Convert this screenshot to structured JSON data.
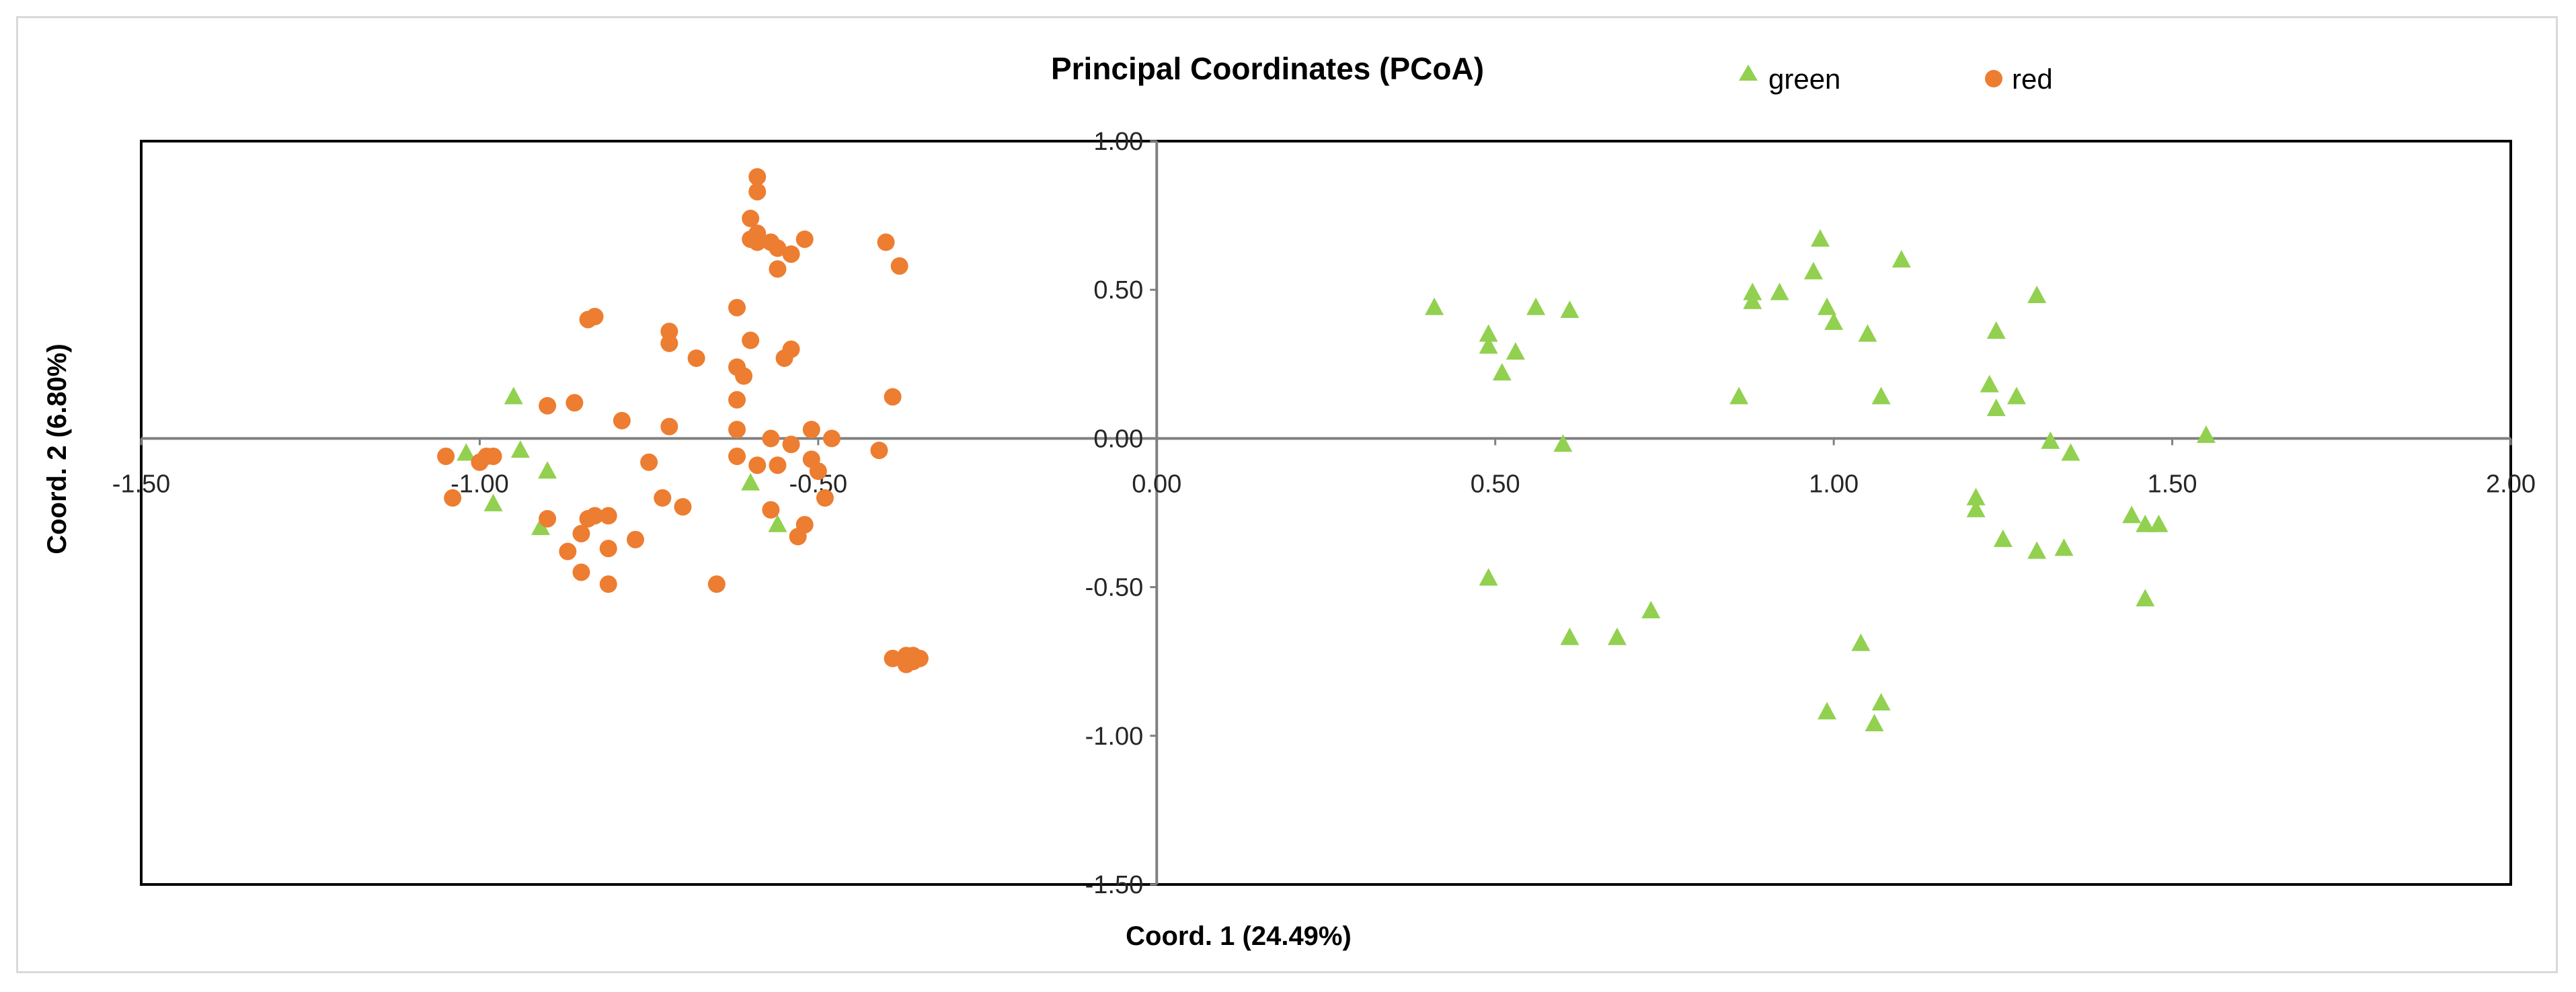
{
  "chart_data": {
    "type": "scatter",
    "title": "Principal Coordinates (PCoA)",
    "xlabel": "Coord. 1 (24.49%)",
    "ylabel": "Coord. 2 (6.80%)",
    "xlim": [
      -1.5,
      2.0
    ],
    "ylim": [
      -1.5,
      1.0
    ],
    "x_ticks": [
      "-1.50",
      "-1.00",
      "-0.50",
      "0.00",
      "0.50",
      "1.00",
      "1.50",
      "2.00"
    ],
    "y_ticks": [
      "1.00",
      "0.50",
      "0.00",
      "-0.50",
      "-1.00",
      "-1.50"
    ],
    "x_tick_values": [
      -1.5,
      -1.0,
      -0.5,
      0.0,
      0.5,
      1.0,
      1.5,
      2.0
    ],
    "y_tick_values": [
      1.0,
      0.5,
      0.0,
      -0.5,
      -1.0,
      -1.5
    ],
    "legend_position": "top-right",
    "series": [
      {
        "name": "green",
        "marker": "triangle",
        "color": "#92D050",
        "points": [
          [
            -1.02,
            -0.05
          ],
          [
            -0.98,
            -0.22
          ],
          [
            -0.95,
            0.14
          ],
          [
            -0.94,
            -0.04
          ],
          [
            -0.9,
            -0.11
          ],
          [
            -0.91,
            -0.3
          ],
          [
            -0.6,
            -0.15
          ],
          [
            -0.56,
            -0.29
          ],
          [
            0.41,
            0.44
          ],
          [
            0.49,
            0.35
          ],
          [
            0.49,
            0.31
          ],
          [
            0.51,
            0.22
          ],
          [
            0.53,
            0.29
          ],
          [
            0.56,
            0.44
          ],
          [
            0.61,
            0.43
          ],
          [
            0.6,
            -0.02
          ],
          [
            0.49,
            -0.47
          ],
          [
            0.61,
            -0.67
          ],
          [
            0.68,
            -0.67
          ],
          [
            0.73,
            -0.58
          ],
          [
            0.86,
            0.14
          ],
          [
            0.88,
            0.49
          ],
          [
            0.88,
            0.46
          ],
          [
            0.92,
            0.49
          ],
          [
            0.97,
            0.56
          ],
          [
            0.98,
            0.67
          ],
          [
            0.99,
            0.44
          ],
          [
            1.0,
            0.39
          ],
          [
            1.05,
            0.35
          ],
          [
            1.07,
            0.14
          ],
          [
            1.1,
            0.6
          ],
          [
            1.21,
            -0.24
          ],
          [
            1.21,
            -0.2
          ],
          [
            1.23,
            0.18
          ],
          [
            1.24,
            0.1
          ],
          [
            1.24,
            0.36
          ],
          [
            1.25,
            -0.34
          ],
          [
            1.27,
            0.14
          ],
          [
            1.3,
            0.48
          ],
          [
            1.3,
            -0.38
          ],
          [
            1.32,
            -0.01
          ],
          [
            1.34,
            -0.37
          ],
          [
            1.35,
            -0.05
          ],
          [
            1.44,
            -0.26
          ],
          [
            1.46,
            -0.29
          ],
          [
            1.46,
            -0.54
          ],
          [
            1.48,
            -0.29
          ],
          [
            1.55,
            0.01
          ],
          [
            0.99,
            -0.92
          ],
          [
            1.04,
            -0.69
          ],
          [
            1.06,
            -0.96
          ],
          [
            1.07,
            -0.89
          ]
        ]
      },
      {
        "name": "red",
        "marker": "circle",
        "color": "#ED7D31",
        "points": [
          [
            -1.05,
            -0.06
          ],
          [
            -1.04,
            -0.2
          ],
          [
            -1.0,
            -0.08
          ],
          [
            -0.99,
            -0.06
          ],
          [
            -0.98,
            -0.06
          ],
          [
            -0.9,
            0.11
          ],
          [
            -0.9,
            -0.27
          ],
          [
            -0.87,
            -0.38
          ],
          [
            -0.86,
            0.12
          ],
          [
            -0.85,
            -0.45
          ],
          [
            -0.85,
            -0.32
          ],
          [
            -0.84,
            0.4
          ],
          [
            -0.84,
            -0.27
          ],
          [
            -0.83,
            0.41
          ],
          [
            -0.83,
            -0.26
          ],
          [
            -0.81,
            -0.26
          ],
          [
            -0.81,
            -0.37
          ],
          [
            -0.81,
            -0.49
          ],
          [
            -0.79,
            0.06
          ],
          [
            -0.77,
            -0.34
          ],
          [
            -0.75,
            -0.08
          ],
          [
            -0.73,
            -0.2
          ],
          [
            -0.72,
            0.36
          ],
          [
            -0.72,
            0.32
          ],
          [
            -0.72,
            0.04
          ],
          [
            -0.7,
            -0.23
          ],
          [
            -0.68,
            0.27
          ],
          [
            -0.65,
            -0.49
          ],
          [
            -0.62,
            0.44
          ],
          [
            -0.62,
            0.24
          ],
          [
            -0.62,
            0.13
          ],
          [
            -0.62,
            0.03
          ],
          [
            -0.62,
            -0.06
          ],
          [
            -0.61,
            0.21
          ],
          [
            -0.6,
            0.33
          ],
          [
            -0.6,
            0.74
          ],
          [
            -0.6,
            0.67
          ],
          [
            -0.59,
            0.88
          ],
          [
            -0.59,
            0.83
          ],
          [
            -0.59,
            0.69
          ],
          [
            -0.59,
            0.66
          ],
          [
            -0.59,
            -0.09
          ],
          [
            -0.57,
            0.66
          ],
          [
            -0.57,
            0.0
          ],
          [
            -0.57,
            -0.24
          ],
          [
            -0.56,
            0.64
          ],
          [
            -0.56,
            0.57
          ],
          [
            -0.56,
            -0.09
          ],
          [
            -0.55,
            0.27
          ],
          [
            -0.54,
            0.3
          ],
          [
            -0.54,
            0.62
          ],
          [
            -0.54,
            -0.02
          ],
          [
            -0.53,
            -0.33
          ],
          [
            -0.52,
            0.67
          ],
          [
            -0.52,
            -0.29
          ],
          [
            -0.51,
            0.03
          ],
          [
            -0.51,
            -0.07
          ],
          [
            -0.5,
            -0.11
          ],
          [
            -0.49,
            -0.2
          ],
          [
            -0.48,
            0.0
          ],
          [
            -0.41,
            -0.04
          ],
          [
            -0.4,
            0.66
          ],
          [
            -0.39,
            0.14
          ],
          [
            -0.38,
            0.58
          ],
          [
            -0.39,
            -0.74
          ],
          [
            -0.37,
            -0.73
          ],
          [
            -0.37,
            -0.76
          ],
          [
            -0.36,
            -0.75
          ],
          [
            -0.36,
            -0.73
          ],
          [
            -0.35,
            -0.74
          ]
        ]
      }
    ]
  }
}
